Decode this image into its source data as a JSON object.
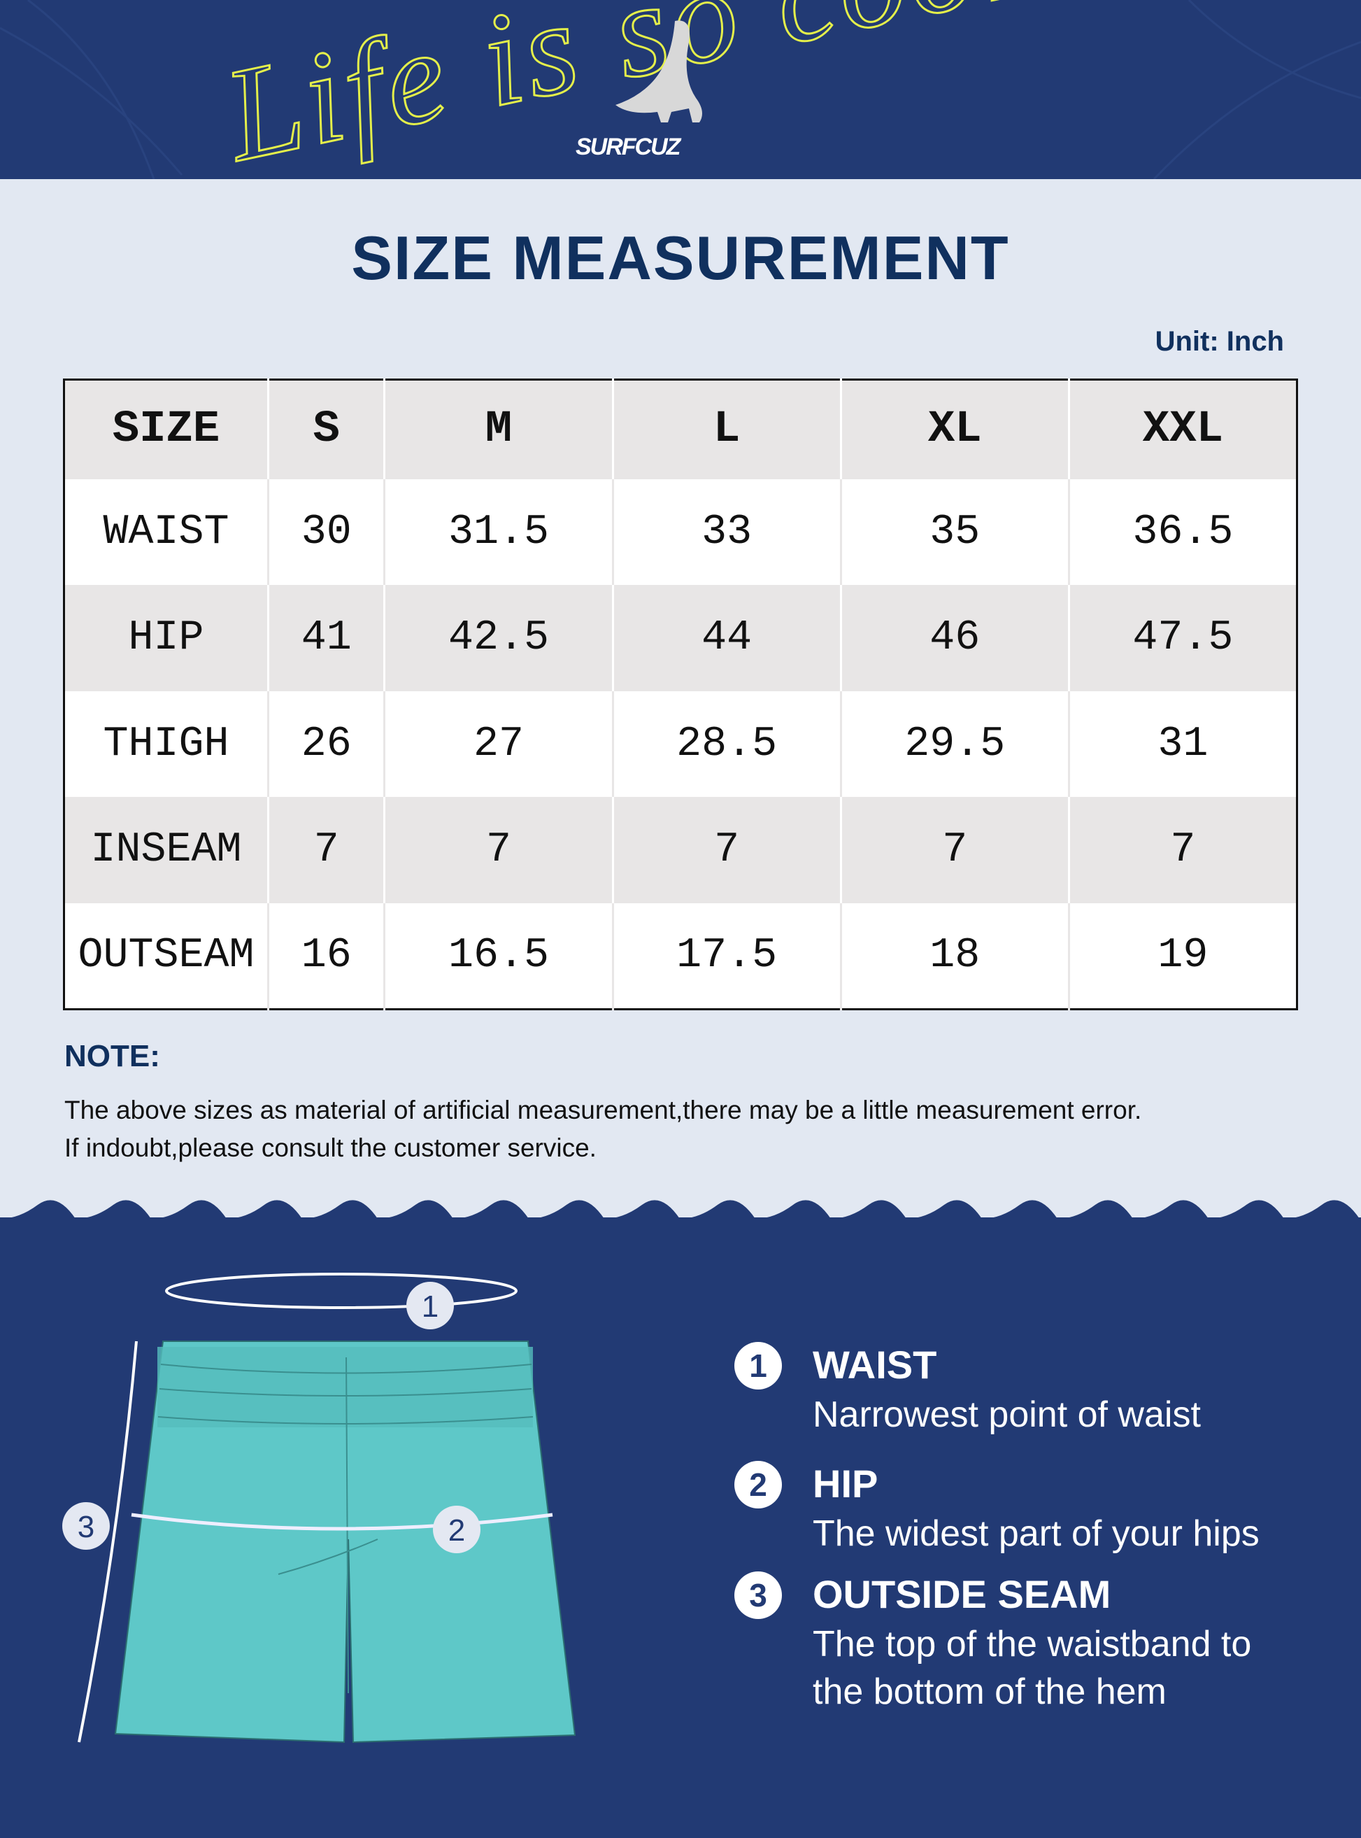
{
  "banner": {
    "script_text": "Life is so cool",
    "brand": "SURFCUZ"
  },
  "title": "SIZE MEASUREMENT",
  "unit": "Unit: Inch",
  "table": {
    "header": [
      "SIZE",
      "S",
      "M",
      "L",
      "XL",
      "XXL"
    ],
    "rows": [
      [
        "WAIST",
        "30",
        "31.5",
        "33",
        "35",
        "36.5"
      ],
      [
        "HIP",
        "41",
        "42.5",
        "44",
        "46",
        "47.5"
      ],
      [
        "THIGH",
        "26",
        "27",
        "28.5",
        "29.5",
        "31"
      ],
      [
        "INSEAM",
        "7",
        "7",
        "7",
        "7",
        "7"
      ],
      [
        "OUTSEAM",
        "16",
        "16.5",
        "17.5",
        "18",
        "19"
      ]
    ]
  },
  "note": {
    "heading": "NOTE:",
    "lines": [
      "The above sizes as material of artificial measurement,there may be a little measurement error.",
      "If indoubt,please consult the customer service."
    ]
  },
  "diagram": {
    "markers": [
      "1",
      "2",
      "3"
    ]
  },
  "guide": [
    {
      "num": "1",
      "title": "WAIST",
      "desc": [
        "Narrowest point of waist"
      ]
    },
    {
      "num": "2",
      "title": "HIP",
      "desc": [
        "The widest part of your hips"
      ]
    },
    {
      "num": "3",
      "title": "OUTSIDE SEAM",
      "desc": [
        "The top of the waistband to",
        "the bottom of the hem"
      ]
    }
  ],
  "colors": {
    "navy": "#223a74",
    "title": "#10305e",
    "accent_yellow": "#e4ef4a",
    "shorts": "#5ec8c8",
    "background": "#e2e8f2"
  }
}
